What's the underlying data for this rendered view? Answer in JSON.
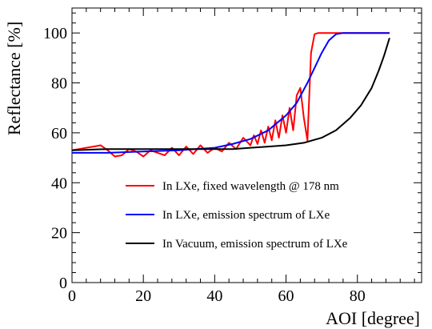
{
  "chart_data": {
    "type": "line",
    "title": "",
    "xlabel": "AOI [degree]",
    "ylabel": "Reflectance [%]",
    "xlim": [
      0,
      98
    ],
    "ylim": [
      0,
      110
    ],
    "x_ticks": [
      0,
      20,
      40,
      60,
      80
    ],
    "y_ticks": [
      0,
      20,
      40,
      60,
      80,
      100
    ],
    "grid": false,
    "legend_position": "lower-center",
    "series": [
      {
        "name": "In LXe, fixed wavelength @ 178 nm",
        "color": "#ff0000",
        "x": [
          0,
          2,
          4,
          6,
          8,
          10,
          12,
          14,
          16,
          18,
          20,
          22,
          24,
          26,
          28,
          30,
          32,
          34,
          36,
          38,
          40,
          42,
          44,
          46,
          48,
          50,
          51,
          52,
          53,
          54,
          55,
          56,
          57,
          58,
          59,
          60,
          61,
          62,
          63,
          64,
          65,
          66,
          67,
          68,
          69,
          70,
          72,
          75,
          80,
          85,
          89
        ],
        "y": [
          53,
          53.5,
          54,
          54.5,
          55,
          53,
          50.5,
          51,
          53.5,
          52.5,
          50.5,
          53,
          52,
          51,
          54,
          51,
          54.5,
          51.5,
          55,
          52,
          54,
          52.5,
          56,
          53.5,
          58,
          55,
          59,
          55.5,
          61,
          56,
          62.5,
          57,
          65,
          58,
          67,
          60,
          70,
          61,
          75,
          78,
          66,
          57,
          92,
          99.5,
          100,
          100,
          100,
          100,
          100,
          100,
          100
        ]
      },
      {
        "name": "In LXe, emission spectrum of LXe",
        "color": "#0000ff",
        "x": [
          0,
          10,
          20,
          30,
          40,
          45,
          50,
          55,
          60,
          63,
          66,
          68,
          70,
          72,
          74,
          76,
          80,
          89
        ],
        "y": [
          52,
          52,
          52.5,
          53,
          54,
          55.5,
          57.5,
          61,
          67,
          72,
          80,
          86,
          92,
          97,
          99.5,
          100,
          100,
          100
        ]
      },
      {
        "name": "In Vacuum, emission spectrum of LXe",
        "color": "#000000",
        "x": [
          0,
          10,
          20,
          30,
          40,
          45,
          50,
          55,
          60,
          65,
          70,
          74,
          78,
          81,
          84,
          86,
          87.5,
          89
        ],
        "y": [
          53,
          53.5,
          53.5,
          53.5,
          53.5,
          53.5,
          54,
          54.5,
          55,
          56,
          58,
          61,
          66,
          71,
          78,
          85,
          91,
          98
        ]
      }
    ]
  }
}
